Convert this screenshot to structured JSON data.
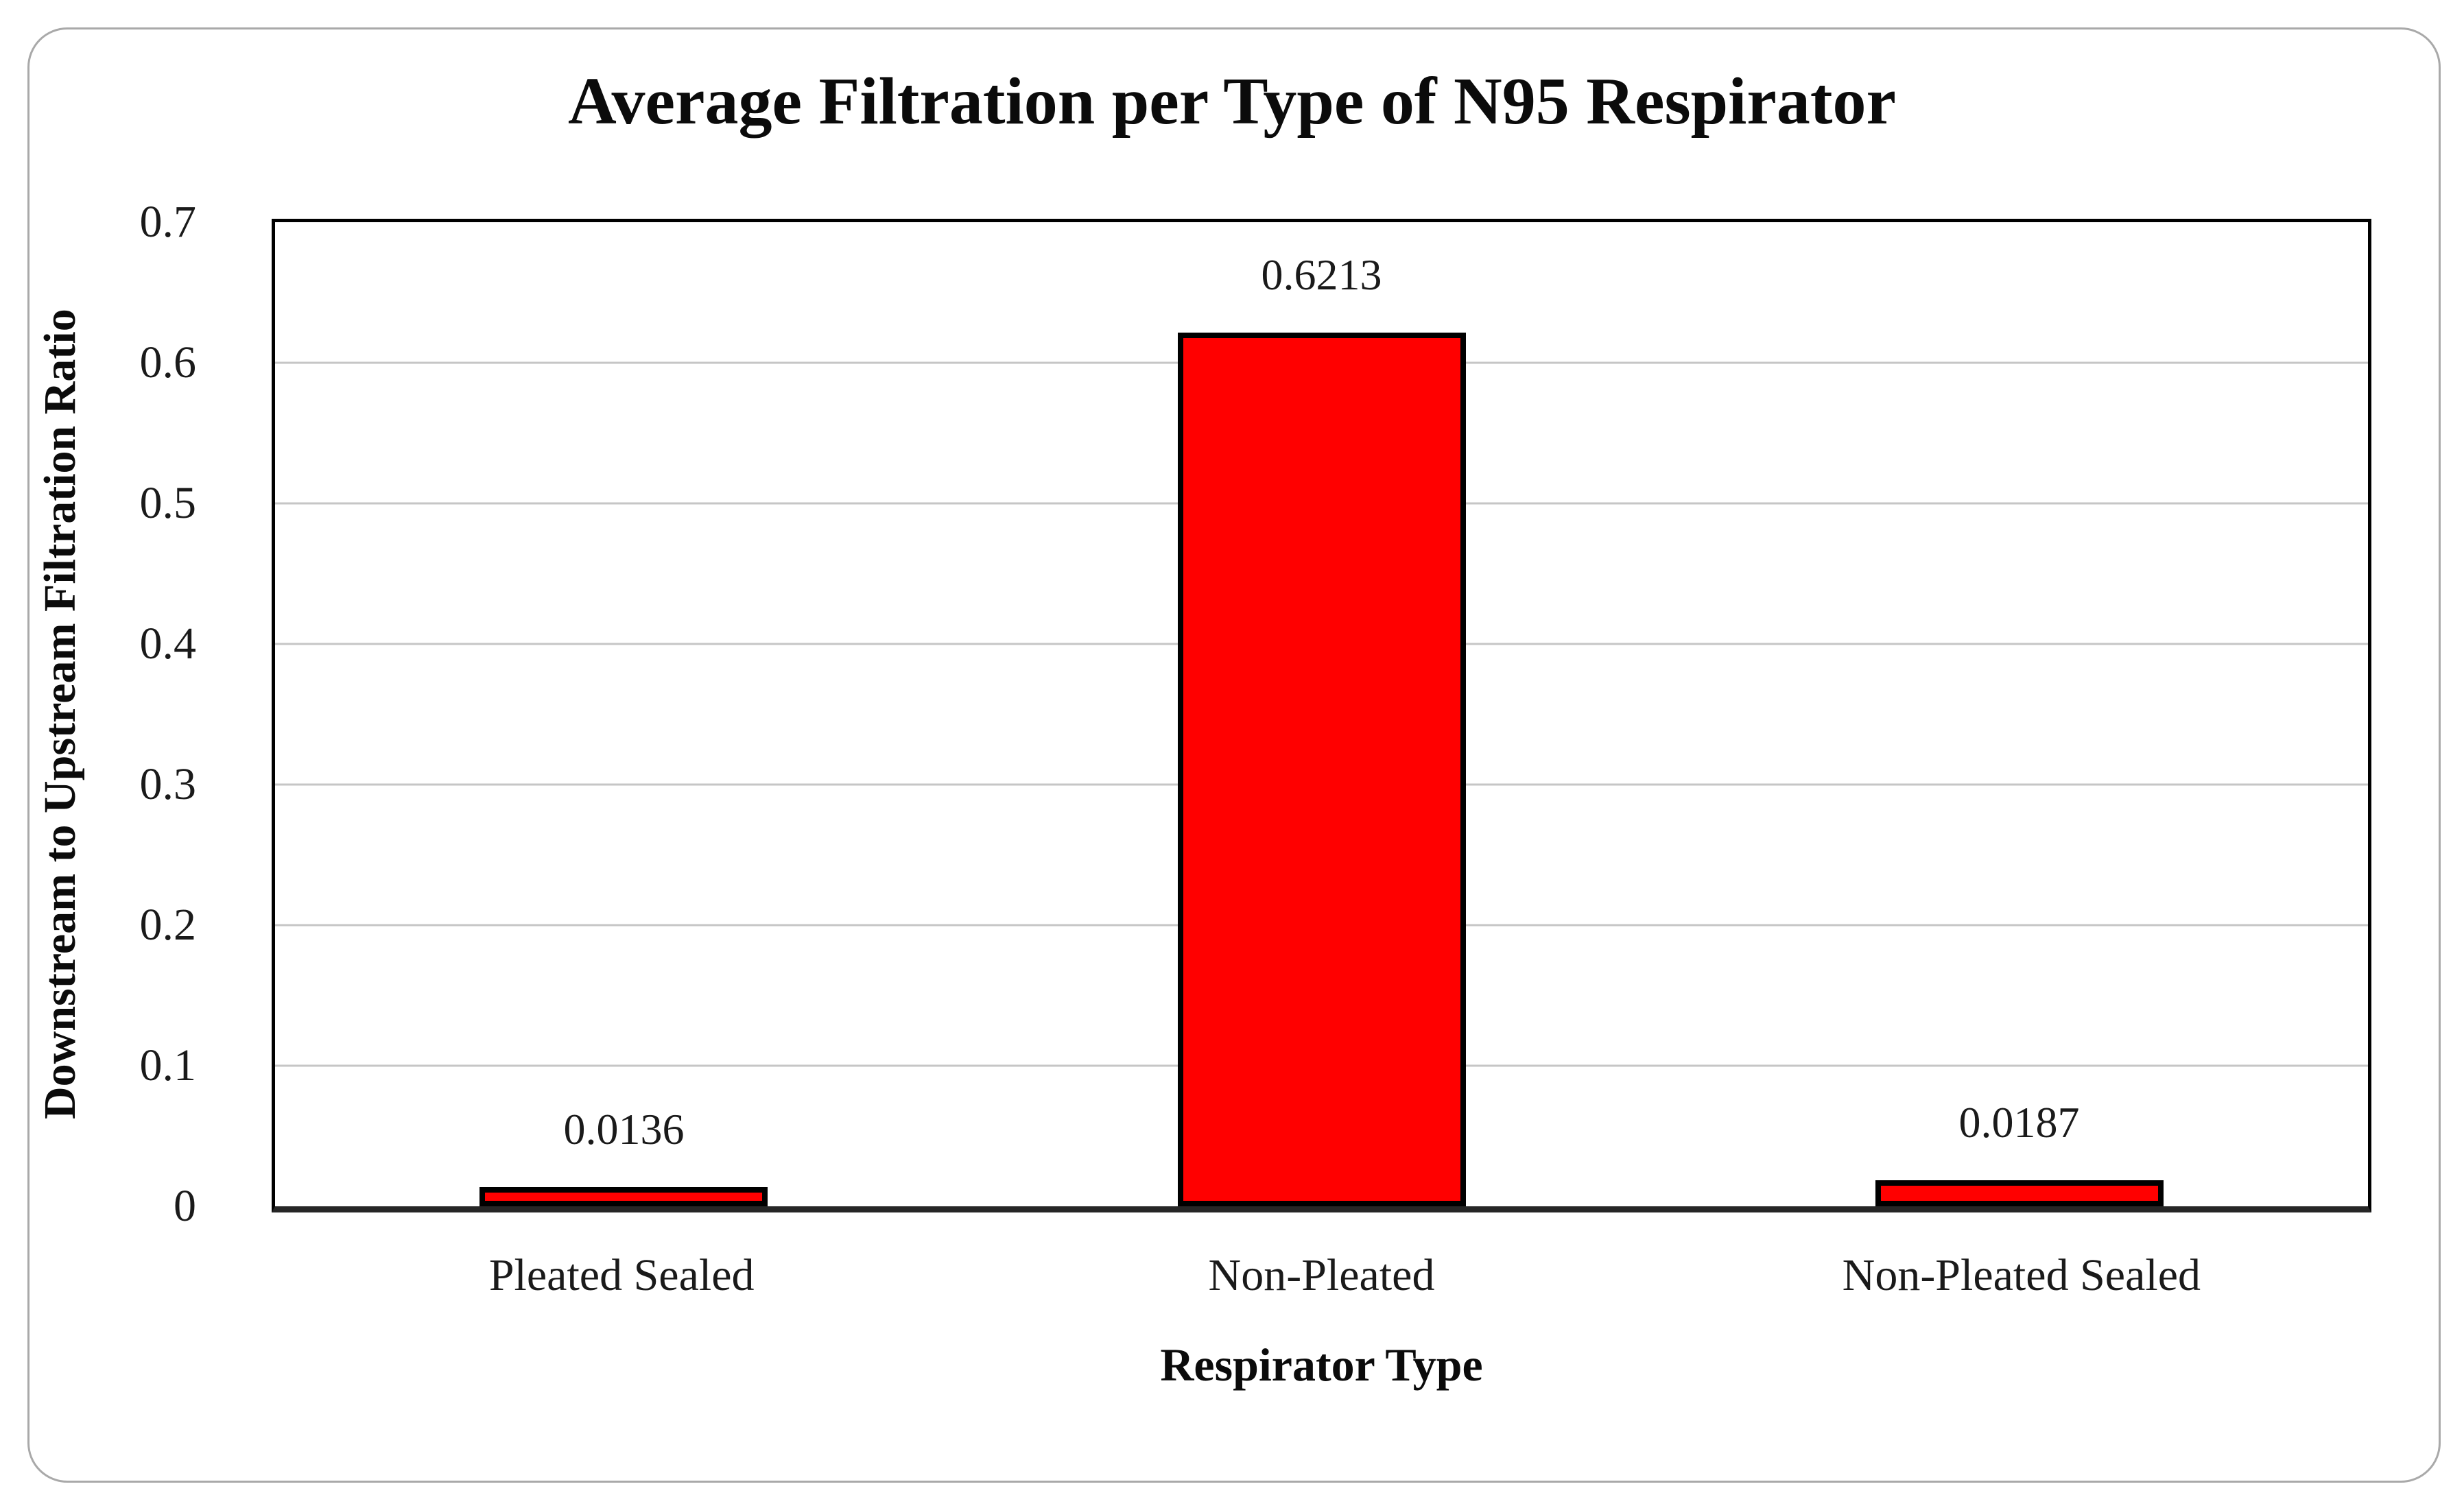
{
  "figure": {
    "background": "#FFFFFF",
    "frame_border_color": "#A9A9A9"
  },
  "chart_data": {
    "type": "bar",
    "title": "Average Filtration per Type of N95 Respirator",
    "xlabel": "Respirator Type",
    "ylabel": "Downstream to Upstream Filtration Ratio",
    "categories": [
      "Pleated Sealed",
      "Non-Pleated",
      "Non-Pleated Sealed"
    ],
    "values": [
      0.0136,
      0.6213,
      0.0187
    ],
    "value_labels": [
      "0.0136",
      "0.6213",
      "0.0187"
    ],
    "ylim": [
      0,
      0.7
    ],
    "ytick_step": 0.1,
    "y_ticks": [
      "0",
      "0.1",
      "0.2",
      "0.3",
      "0.4",
      "0.5",
      "0.6",
      "0.7"
    ],
    "grid": "horizontal-major",
    "legend": "none",
    "bar_color": "#FF0000",
    "bar_border_color": "#000000",
    "gridline_color": "#C6C6C6"
  }
}
